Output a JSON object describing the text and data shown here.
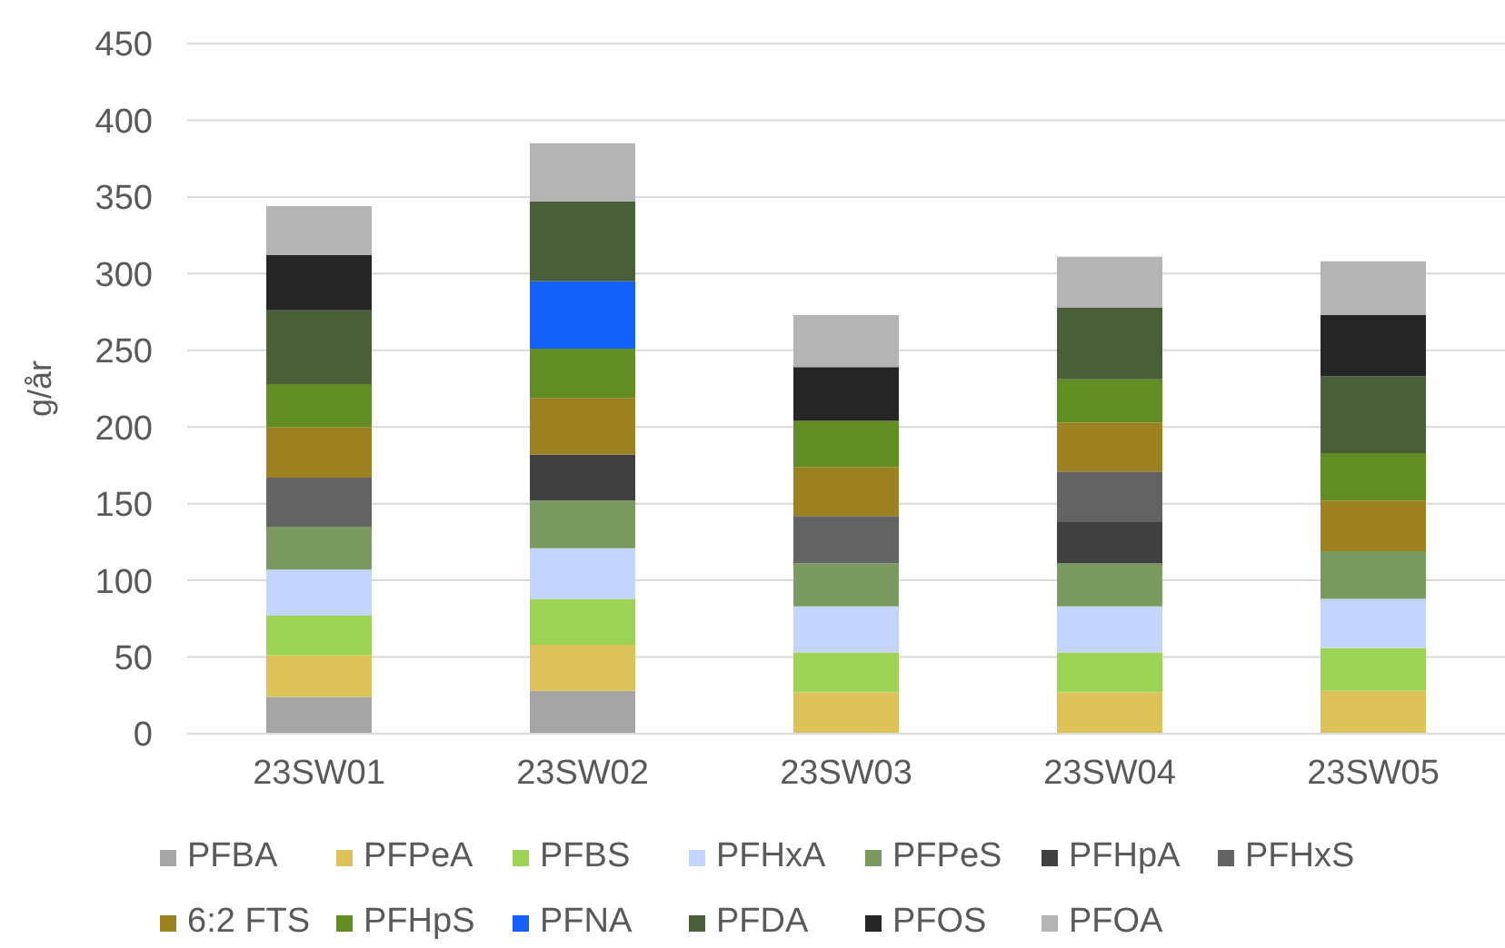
{
  "chart_data": {
    "type": "bar",
    "stacked": true,
    "ylabel": "g/år",
    "categories": [
      "23SW01",
      "23SW02",
      "23SW03",
      "23SW04",
      "23SW05"
    ],
    "series": [
      {
        "name": "PFBA",
        "color": "#a5a5a5",
        "values": [
          24,
          28,
          null,
          null,
          null
        ]
      },
      {
        "name": "PFPeA",
        "color": "#ddc25a",
        "values": [
          27,
          30,
          27,
          27,
          28
        ]
      },
      {
        "name": "PFBS",
        "color": "#9dd456",
        "values": [
          26,
          30,
          26,
          26,
          28
        ]
      },
      {
        "name": "PFHxA",
        "color": "#c3d5fc",
        "values": [
          30,
          33,
          30,
          30,
          32
        ]
      },
      {
        "name": "PFPeS",
        "color": "#7a9a62",
        "values": [
          28,
          31,
          28,
          28,
          31
        ]
      },
      {
        "name": "PFHpA",
        "color": "#404040",
        "values": [
          null,
          30,
          null,
          27,
          null
        ]
      },
      {
        "name": "PFHxS",
        "color": "#636363",
        "values": [
          32,
          null,
          31,
          33,
          null
        ]
      },
      {
        "name": "6:2 FTS",
        "color": "#9c8221",
        "values": [
          33,
          37,
          32,
          32,
          33
        ]
      },
      {
        "name": "PFHpS",
        "color": "#628c24",
        "values": [
          28,
          32,
          30,
          28,
          31
        ]
      },
      {
        "name": "PFNA",
        "color": "#1460fb",
        "values": [
          null,
          44,
          null,
          null,
          null
        ]
      },
      {
        "name": "PFDA",
        "color": "#4a5e3a",
        "values": [
          48,
          52,
          null,
          47,
          50
        ]
      },
      {
        "name": "PFOS",
        "color": "#262626",
        "values": [
          36,
          null,
          35,
          null,
          40
        ]
      },
      {
        "name": "PFOA",
        "color": "#b4b4b4",
        "values": [
          32,
          38,
          34,
          33,
          35
        ]
      }
    ],
    "ylim": [
      0,
      450
    ],
    "yticks": [
      0,
      50,
      100,
      150,
      200,
      250,
      300,
      350,
      400,
      450
    ],
    "grid": "y",
    "legend": "bottom"
  }
}
